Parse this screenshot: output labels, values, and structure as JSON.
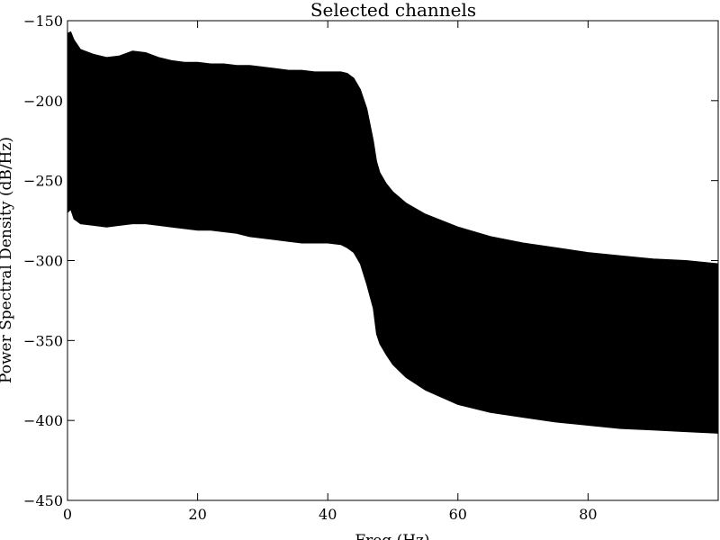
{
  "chart_data": {
    "type": "area",
    "title": "Selected channels",
    "xlabel": "Freq (Hz)",
    "ylabel": "Power Spectral Density (dB/Hz)",
    "xlim": [
      0,
      100
    ],
    "ylim": [
      -450,
      -150
    ],
    "x_ticks": [
      0,
      20,
      40,
      60,
      80
    ],
    "x_tick_labels": [
      "0",
      "20",
      "40",
      "60",
      "80"
    ],
    "y_ticks": [
      -150,
      -200,
      -250,
      -300,
      -350,
      -400,
      -450
    ],
    "y_tick_labels": [
      "−150",
      "−200",
      "−250",
      "−300",
      "−350",
      "−400",
      "−450"
    ],
    "grid": false,
    "fill_color": "#000000",
    "series": [
      {
        "x": [
          0,
          0.5,
          1,
          2,
          4,
          6,
          8,
          10,
          12,
          14,
          16,
          18,
          20,
          22,
          24,
          26,
          28,
          30,
          32,
          34,
          36,
          38,
          40,
          42,
          43,
          44,
          45,
          46,
          47,
          47.5,
          48,
          49,
          50,
          52,
          55,
          60,
          65,
          70,
          75,
          80,
          85,
          90,
          95,
          100
        ],
        "y_upper": [
          -158,
          -157,
          -162,
          -168,
          -171,
          -173,
          -172,
          -169,
          -170,
          -173,
          -175,
          -176,
          -176,
          -177,
          -177,
          -178,
          -178,
          -179,
          -180,
          -181,
          -181,
          -182,
          -182,
          -182,
          -183,
          -186,
          -193,
          -205,
          -225,
          -238,
          -245,
          -252,
          -257,
          -264,
          -271,
          -279,
          -285,
          -289,
          -292,
          -295,
          -297,
          -299,
          -300,
          -302
        ],
        "y_lower": [
          -270,
          -268,
          -274,
          -277,
          -278,
          -279,
          -278,
          -277,
          -277,
          -278,
          -279,
          -280,
          -281,
          -281,
          -282,
          -283,
          -285,
          -286,
          -287,
          -288,
          -289,
          -289,
          -289,
          -290,
          -292,
          -295,
          -302,
          -315,
          -330,
          -346,
          -352,
          -359,
          -365,
          -373,
          -381,
          -390,
          -395,
          -398,
          -401,
          -403,
          -405,
          -406,
          -407,
          -408
        ]
      }
    ]
  }
}
